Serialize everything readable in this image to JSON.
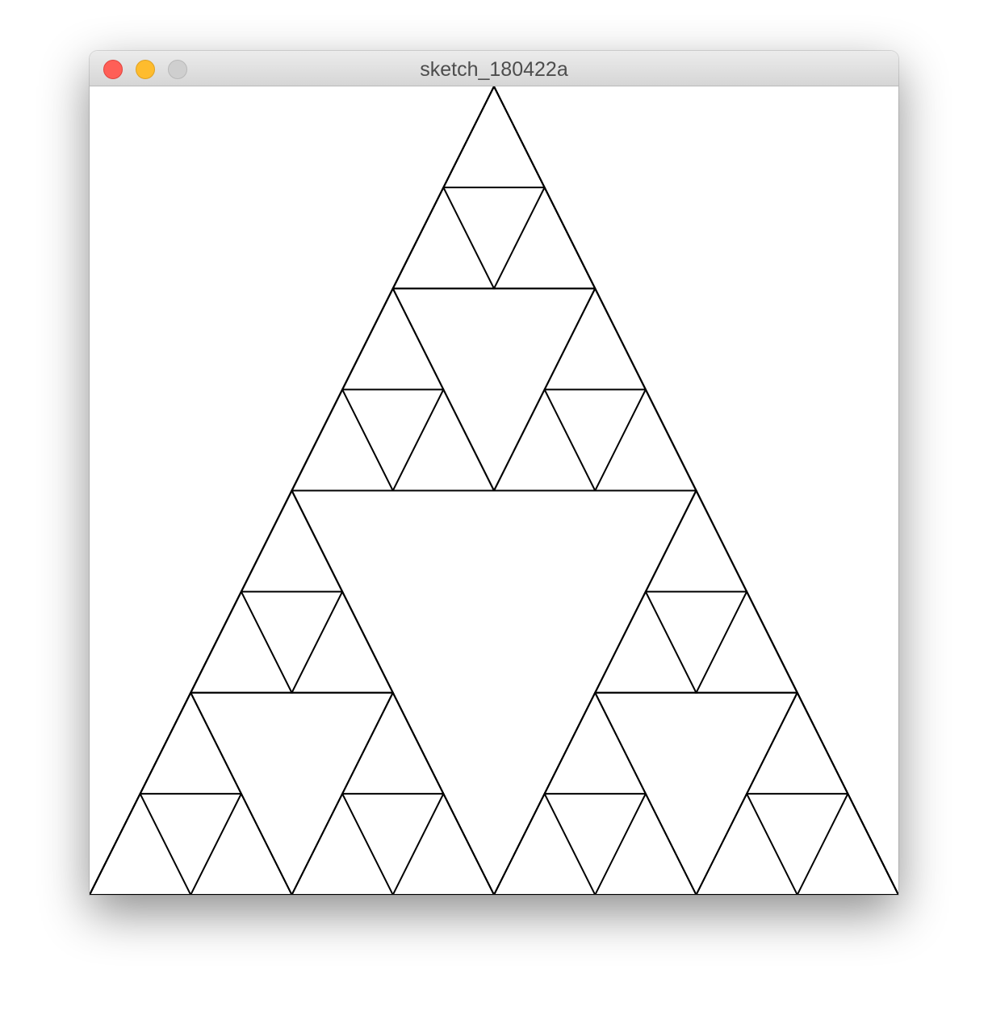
{
  "window": {
    "title": "sketch_180422a",
    "buttons": {
      "close_color": "#ff5f57",
      "minimize_color": "#febc2e",
      "zoom_color": "#cfcfcf"
    }
  },
  "canvas": {
    "background": "#ffffff",
    "stroke": "#000000",
    "fractal": "sierpinski-triangle",
    "depth": 3
  }
}
